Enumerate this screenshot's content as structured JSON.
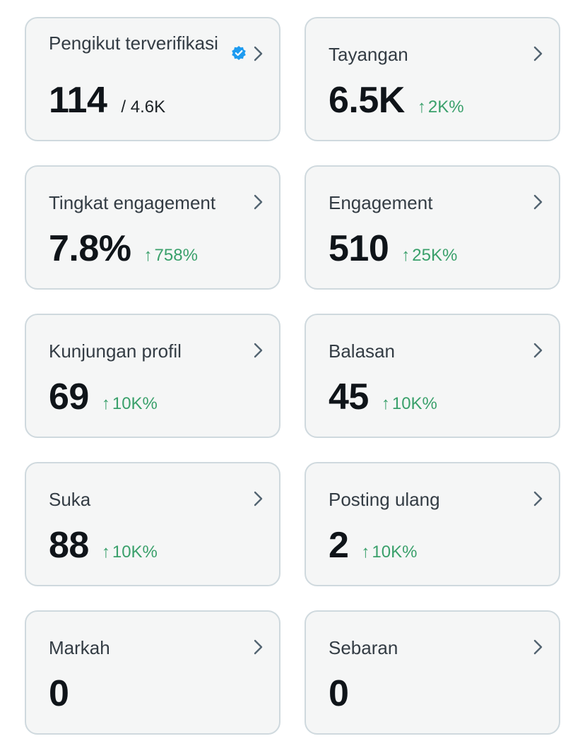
{
  "colors": {
    "card_bg": "#f5f6f6",
    "card_border": "#cfd9de",
    "positive": "#3aa06b",
    "verified": "#1d9bf0"
  },
  "cards": [
    {
      "label": "Pengikut terverifikasi",
      "value": "114",
      "total": "/ 4.6K",
      "icon": "verified-badge-icon"
    },
    {
      "label": "Tayangan",
      "value": "6.5K",
      "arrow": "↑",
      "delta": "2K%"
    },
    {
      "label": "Tingkat engagement",
      "value": "7.8%",
      "arrow": "↑",
      "delta": "758%"
    },
    {
      "label": "Engagement",
      "value": "510",
      "arrow": "↑",
      "delta": "25K%"
    },
    {
      "label": "Kunjungan profil",
      "value": "69",
      "arrow": "↑",
      "delta": "10K%"
    },
    {
      "label": "Balasan",
      "value": "45",
      "arrow": "↑",
      "delta": "10K%"
    },
    {
      "label": "Suka",
      "value": "88",
      "arrow": "↑",
      "delta": "10K%"
    },
    {
      "label": "Posting ulang",
      "value": "2",
      "arrow": "↑",
      "delta": "10K%"
    },
    {
      "label": "Markah",
      "value": "0"
    },
    {
      "label": "Sebaran",
      "value": "0"
    }
  ]
}
